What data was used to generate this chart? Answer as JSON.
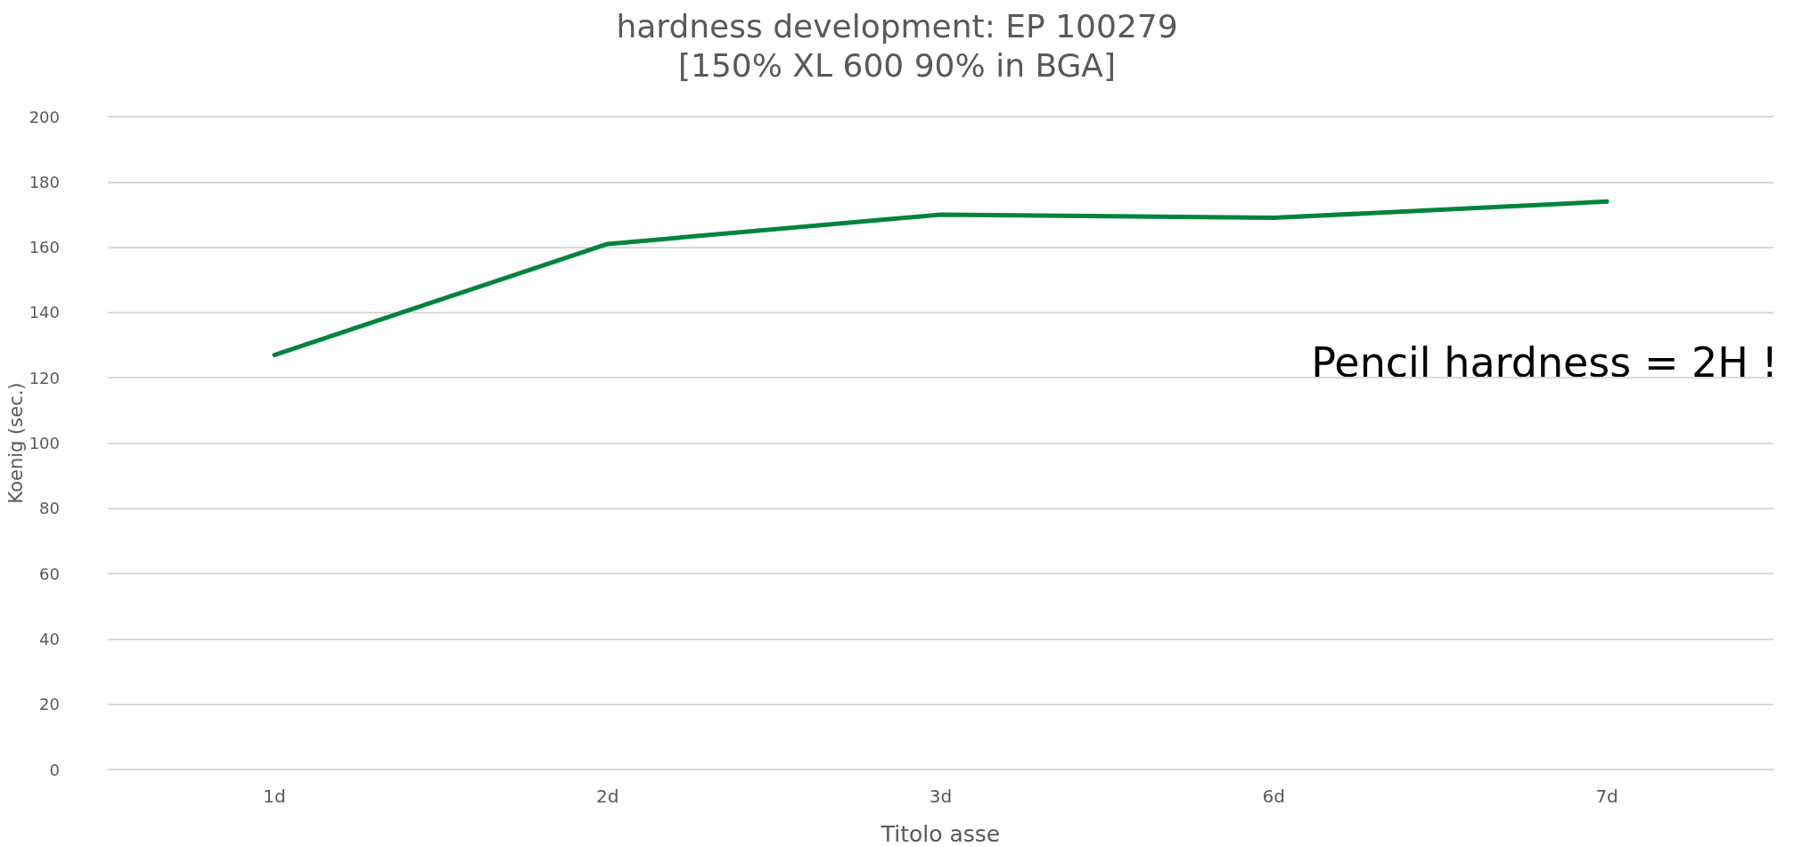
{
  "chart_data": {
    "type": "line",
    "title": "hardness development: EP 100279\n[150% XL 600 90% in BGA]",
    "xlabel": "Titolo asse",
    "ylabel": "Koenig (sec.)",
    "categories": [
      "1d",
      "2d",
      "3d",
      "6d",
      "7d"
    ],
    "series": [
      {
        "color": "#00843d",
        "values": [
          127,
          161,
          170,
          169,
          174
        ]
      }
    ],
    "ylim": [
      0,
      200
    ],
    "yticks": [
      0,
      20,
      40,
      60,
      80,
      100,
      120,
      140,
      160,
      180,
      200
    ],
    "grid": "y",
    "marker": "none",
    "line_style": "solid",
    "annotations": [
      "Pencil hardness = 2H !"
    ]
  }
}
